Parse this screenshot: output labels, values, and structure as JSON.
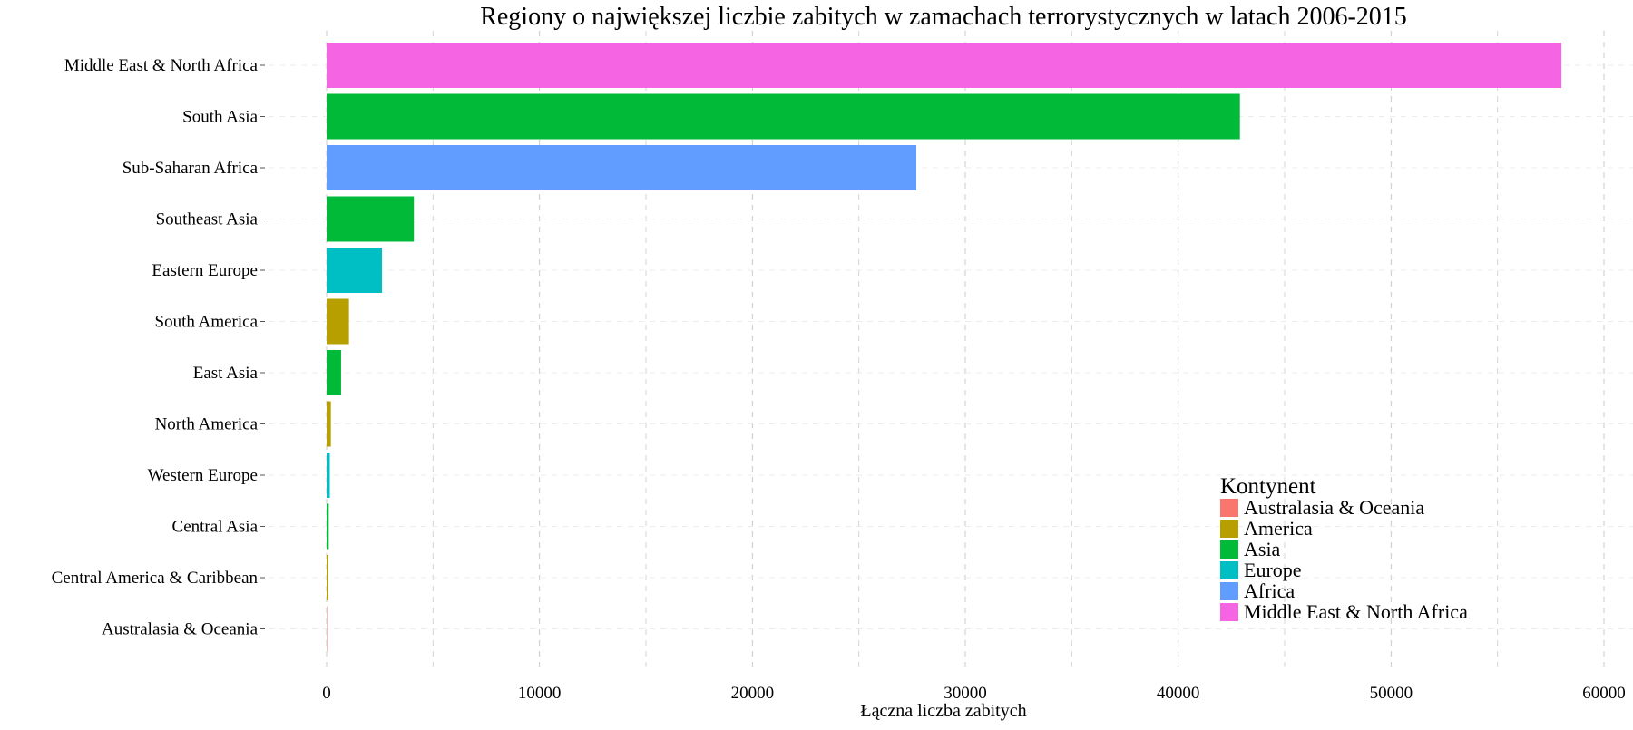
{
  "chart_data": {
    "type": "bar",
    "orientation": "horizontal",
    "title": "Regiony o największej liczbie zabitych w zamachach terrorystycznych w latach 2006-2015",
    "xlabel": "Łączna liczba zabitych",
    "ylabel": "",
    "xlim": [
      0,
      60000
    ],
    "xticks": [
      0,
      10000,
      20000,
      30000,
      40000,
      50000,
      60000
    ],
    "grid": true,
    "legend": {
      "title": "Kontynent",
      "placement": "bottom-right",
      "entries": [
        {
          "name": "Australasia & Oceania",
          "color": "#F8766D"
        },
        {
          "name": "America",
          "color": "#B79F00"
        },
        {
          "name": "Asia",
          "color": "#00BA38"
        },
        {
          "name": "Europe",
          "color": "#00BFC4"
        },
        {
          "name": "Africa",
          "color": "#619CFF"
        },
        {
          "name": "Middle East & North Africa",
          "color": "#F564E3"
        }
      ]
    },
    "categories": [
      "Middle East & North Africa",
      "South Asia",
      "Sub-Saharan Africa",
      "Southeast Asia",
      "Eastern Europe",
      "South America",
      "East Asia",
      "North America",
      "Western Europe",
      "Central Asia",
      "Central America & Caribbean",
      "Australasia & Oceania"
    ],
    "values": [
      58000,
      42900,
      27700,
      4100,
      2600,
      1050,
      680,
      200,
      150,
      100,
      80,
      10
    ],
    "continents": [
      "Middle East & North Africa",
      "Asia",
      "Africa",
      "Asia",
      "Europe",
      "America",
      "Asia",
      "America",
      "Europe",
      "Asia",
      "America",
      "Australasia & Oceania"
    ]
  }
}
